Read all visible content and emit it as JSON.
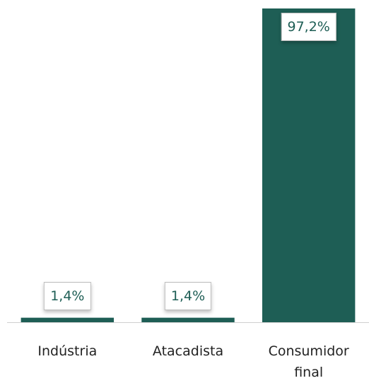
{
  "chart_data": {
    "type": "bar",
    "categories": [
      "Indústria",
      "Atacadista",
      "Consumidor final"
    ],
    "values": [
      1.4,
      1.4,
      97.2
    ],
    "value_labels": [
      "1,4%",
      "1,4%",
      "97,2%"
    ],
    "color": "#1e5e55"
  }
}
